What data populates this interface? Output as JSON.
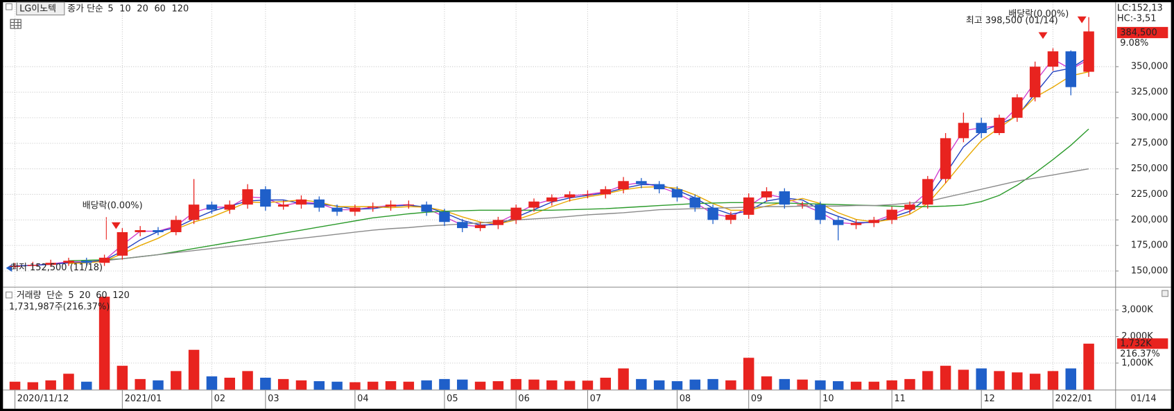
{
  "chart_data": [
    {
      "type": "candlestick",
      "title": "LG이노텍",
      "legend_label": "종가 단순",
      "legend_color": "#d040d0",
      "categories": [
        "2020/11/12",
        null,
        null,
        null,
        null,
        null,
        "2021/01",
        null,
        null,
        null,
        null,
        "02",
        null,
        null,
        "03",
        null,
        null,
        null,
        null,
        "04",
        null,
        null,
        null,
        null,
        "05",
        null,
        null,
        null,
        "06",
        null,
        null,
        null,
        "07",
        null,
        null,
        null,
        null,
        "08",
        null,
        null,
        null,
        "09",
        null,
        null,
        null,
        "10",
        null,
        null,
        null,
        "11",
        null,
        null,
        null,
        null,
        "12",
        null,
        null,
        null,
        "2022/01",
        null,
        null
      ],
      "open": [
        154000,
        155000,
        156000,
        158000,
        160000,
        158000,
        165000,
        188000,
        190000,
        188000,
        200000,
        215000,
        210000,
        215000,
        230000,
        213000,
        215000,
        220000,
        212000,
        208000,
        212000,
        213000,
        215000,
        215000,
        208000,
        198000,
        192000,
        195000,
        200000,
        212000,
        218000,
        222000,
        225000,
        225000,
        230000,
        238000,
        235000,
        230000,
        222000,
        212000,
        200000,
        205000,
        222000,
        228000,
        215000,
        215000,
        200000,
        195000,
        197000,
        200000,
        210000,
        215000,
        240000,
        280000,
        295000,
        285000,
        300000,
        320000,
        350000,
        365000,
        345000
      ],
      "high": [
        158000,
        159000,
        161000,
        163000,
        163000,
        166000,
        192000,
        194000,
        193000,
        204000,
        240000,
        218000,
        219000,
        235000,
        233000,
        219000,
        224000,
        223000,
        215000,
        215000,
        217000,
        219000,
        219000,
        218000,
        211000,
        201000,
        198000,
        203000,
        215000,
        221000,
        225000,
        228000,
        229000,
        233000,
        242000,
        241000,
        238000,
        233000,
        225000,
        215000,
        208000,
        226000,
        232000,
        231000,
        218000,
        218000,
        203000,
        200000,
        203000,
        213000,
        218000,
        243000,
        285000,
        305000,
        300000,
        303000,
        323000,
        355000,
        368000,
        366000,
        398500
      ],
      "low": [
        152500,
        153000,
        154000,
        155000,
        155000,
        155000,
        161000,
        184000,
        185000,
        185000,
        196000,
        206000,
        206000,
        211000,
        209000,
        210000,
        211000,
        208000,
        204000,
        204000,
        208000,
        209000,
        211000,
        204000,
        194000,
        188000,
        189000,
        191000,
        196000,
        208000,
        214000,
        218000,
        221000,
        221000,
        226000,
        231000,
        226000,
        218000,
        208000,
        196000,
        196000,
        201000,
        218000,
        211000,
        211000,
        196000,
        180000,
        191000,
        193000,
        196000,
        206000,
        211000,
        236000,
        276000,
        280000,
        283000,
        296000,
        316000,
        346000,
        322000,
        340000
      ],
      "close": [
        155000,
        156000,
        158000,
        160000,
        158000,
        163000,
        188000,
        190000,
        188000,
        200000,
        215000,
        210000,
        215000,
        230000,
        213000,
        215000,
        220000,
        212000,
        208000,
        212000,
        213000,
        215000,
        215000,
        208000,
        198000,
        192000,
        195000,
        200000,
        212000,
        218000,
        222000,
        225000,
        225000,
        230000,
        238000,
        235000,
        230000,
        222000,
        212000,
        200000,
        205000,
        222000,
        228000,
        215000,
        215000,
        200000,
        195000,
        197000,
        200000,
        210000,
        215000,
        240000,
        280000,
        295000,
        285000,
        300000,
        320000,
        350000,
        365000,
        330000,
        384500
      ],
      "colors": {
        "up": "#e8231f",
        "down": "#1f5fc9"
      },
      "series": [
        {
          "name": "5",
          "color": "#d040d0",
          "values": [
            155000,
            155500,
            157000,
            159000,
            159000,
            160500,
            175500,
            189000,
            189000,
            194000,
            207500,
            212500,
            212500,
            222500,
            221500,
            214000,
            217500,
            216000,
            210000,
            210000,
            212500,
            214000,
            215000,
            211500,
            203000,
            195000,
            193500,
            197500,
            206000,
            215000,
            220000,
            223500,
            225000,
            227500,
            234000,
            236500,
            232500,
            226000,
            217000,
            206000,
            202500,
            213500,
            225000,
            221500,
            215000,
            207500,
            197500,
            196000,
            198500,
            205000,
            212500,
            227500,
            260000,
            287500,
            290000,
            292500,
            310000,
            335000,
            357500,
            347500,
            357000
          ]
        },
        {
          "name": "10",
          "color": "#2040c0",
          "values": [
            155000,
            155500,
            156500,
            158000,
            158500,
            160500,
            169500,
            180500,
            188500,
            192500,
            201000,
            208500,
            213500,
            218500,
            219500,
            219500,
            216000,
            215500,
            213500,
            210500,
            211000,
            213500,
            214500,
            212500,
            207000,
            199500,
            195000,
            195500,
            202500,
            210000,
            217500,
            221500,
            224000,
            226500,
            231000,
            234500,
            234500,
            229000,
            221500,
            211500,
            205500,
            209000,
            218500,
            221500,
            219500,
            210000,
            203500,
            197500,
            197500,
            202500,
            208500,
            221500,
            245000,
            271500,
            286500,
            293500,
            301500,
            323500,
            345000,
            348500,
            359500
          ]
        },
        {
          "name": "20",
          "color": "#e8a800",
          "values": [
            null,
            null,
            null,
            157500,
            158000,
            159500,
            167000,
            175000,
            182000,
            191000,
            198000,
            203000,
            210000,
            217500,
            217000,
            218000,
            219500,
            217500,
            213000,
            213000,
            213000,
            212000,
            213000,
            212500,
            209000,
            203000,
            198000,
            196000,
            200000,
            206000,
            213000,
            219000,
            222500,
            225500,
            229500,
            232000,
            232500,
            231000,
            224500,
            216000,
            209500,
            209500,
            213500,
            217500,
            221000,
            216000,
            207000,
            200500,
            198000,
            200500,
            205500,
            216000,
            236000,
            257500,
            277500,
            290000,
            302500,
            320000,
            330000,
            341000,
            345000
          ]
        },
        {
          "name": "60",
          "color": "#2a9a2a",
          "values": [
            null,
            null,
            null,
            160000,
            160500,
            161000,
            162000,
            164000,
            166000,
            169000,
            172000,
            175000,
            178000,
            181000,
            184000,
            187000,
            190000,
            193000,
            196000,
            199000,
            202000,
            204000,
            206000,
            207500,
            208500,
            209000,
            209500,
            209500,
            209500,
            209500,
            209500,
            210000,
            210500,
            211000,
            212000,
            213000,
            214000,
            215000,
            216000,
            216500,
            217000,
            217000,
            216500,
            216500,
            216000,
            215500,
            215000,
            214500,
            214000,
            213500,
            213000,
            213000,
            213500,
            214500,
            218000,
            224000,
            234000,
            246000,
            259000,
            273000,
            289000
          ]
        },
        {
          "name": "120",
          "color": "#8a8a8a",
          "values": [
            null,
            null,
            null,
            null,
            null,
            160000,
            162000,
            164000,
            166000,
            168000,
            170000,
            172000,
            174000,
            176000,
            178000,
            180000,
            182000,
            184000,
            186000,
            188000,
            190000,
            191500,
            192500,
            194000,
            195000,
            196000,
            197000,
            198500,
            200000,
            201000,
            202000,
            203500,
            205000,
            206000,
            207000,
            208500,
            210000,
            210500,
            211000,
            211500,
            212000,
            212500,
            213000,
            213000,
            213500,
            213500,
            213500,
            214000,
            214000,
            215000,
            216500,
            218000,
            222000,
            226000,
            230000,
            234000,
            238000,
            241000,
            244000,
            247000,
            250000
          ]
        }
      ],
      "ylim": [
        134600,
        409400
      ],
      "yticks": [
        {
          "value": 150000,
          "label": "150,000"
        },
        {
          "value": 175000,
          "label": "175,000"
        },
        {
          "value": 200000,
          "label": "200,000"
        },
        {
          "value": 225000,
          "label": "225,000"
        },
        {
          "value": 250000,
          "label": "250,000"
        },
        {
          "value": 275000,
          "label": "275,000"
        },
        {
          "value": 300000,
          "label": "300,000"
        },
        {
          "value": 325000,
          "label": "325,000"
        },
        {
          "value": 350000,
          "label": "350,000"
        }
      ],
      "grid": true,
      "annotations": [
        "배당락(0.00%)",
        "최저 152,500 (11/18)",
        "최고 398,500 (01/14)",
        "배당락(0.00%)"
      ],
      "right_labels": [
        "LC:152,13",
        "HC:-3,51",
        "384,500",
        "9.08%"
      ],
      "x_end_label": "01/14"
    },
    {
      "type": "bar",
      "legend": [
        {
          "name": "거래량",
          "color": "#1a9b9b"
        },
        {
          "name": "단순",
          "color": "#c030c0"
        },
        {
          "name": "5",
          "color": "#c030c0"
        },
        {
          "name": "20",
          "color": "#e8a800"
        },
        {
          "name": "60",
          "color": "#2a9a2a"
        },
        {
          "name": "120",
          "color": "#888888"
        }
      ],
      "info": "1,731,987주(216.37%)",
      "values": [
        300000,
        280000,
        350000,
        600000,
        300000,
        3500000,
        900000,
        400000,
        350000,
        700000,
        1500000,
        500000,
        450000,
        700000,
        450000,
        400000,
        350000,
        320000,
        300000,
        280000,
        300000,
        320000,
        300000,
        350000,
        400000,
        380000,
        300000,
        320000,
        400000,
        380000,
        350000,
        330000,
        340000,
        450000,
        800000,
        400000,
        350000,
        320000,
        380000,
        400000,
        350000,
        1200000,
        500000,
        400000,
        380000,
        350000,
        320000,
        300000,
        300000,
        350000,
        400000,
        700000,
        900000,
        750000,
        800000,
        700000,
        650000,
        600000,
        700000,
        800000,
        1732000
      ],
      "ylim": [
        0,
        3790000
      ],
      "yticks": [
        {
          "value": 1000000,
          "label": "1,000K"
        },
        {
          "value": 2000000,
          "label": "2,000K"
        },
        {
          "value": 3000000,
          "label": "3,000K"
        }
      ],
      "grid": true,
      "right_labels": [
        "1,732K",
        "216.37%"
      ]
    }
  ]
}
